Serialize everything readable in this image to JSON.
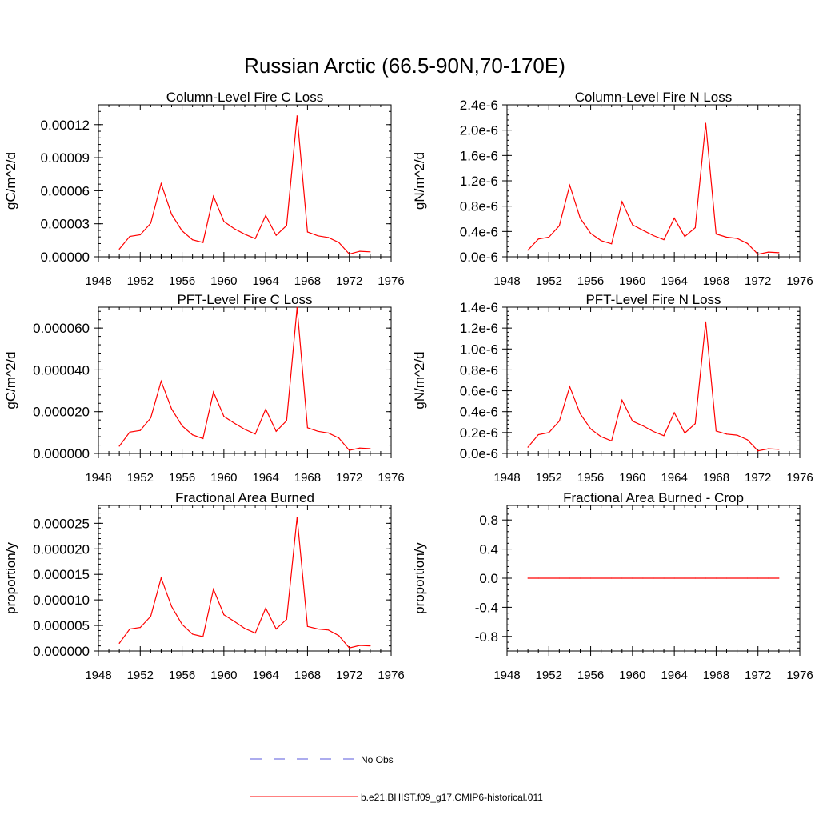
{
  "figure": {
    "title": "Russian Arctic (66.5-90N,70-170E)"
  },
  "legend": {
    "entries": [
      {
        "label": "No Obs",
        "color": "#5a5adc",
        "dash": true
      },
      {
        "label": "b.e21.BHIST.f09_g17.CMIP6-historical.011",
        "color": "#ff0000",
        "dash": false
      }
    ]
  },
  "colors": {
    "model": "#ff0000",
    "obs": "#5a5adc",
    "axis": "#000000"
  },
  "chart_data": [
    {
      "type": "line",
      "title": "Column-Level Fire C Loss",
      "ylabel": "gC/m^2/d",
      "xlim": [
        1948,
        1976
      ],
      "xticks": [
        "1948",
        "1952",
        "1956",
        "1960",
        "1964",
        "1968",
        "1972",
        "1976"
      ],
      "ylim": [
        0,
        0.000138
      ],
      "yticks": [
        0,
        3e-05,
        6e-05,
        9e-05,
        0.00012
      ],
      "ytick_labels": [
        "0.00000",
        "0.00003",
        "0.00006",
        "0.00009",
        "0.00012"
      ],
      "x": [
        1950,
        1951,
        1952,
        1953,
        1954,
        1955,
        1956,
        1957,
        1958,
        1959,
        1960,
        1961,
        1962,
        1963,
        1964,
        1965,
        1966,
        1967,
        1968,
        1969,
        1970,
        1971,
        1972,
        1973,
        1974
      ],
      "series": [
        {
          "name": "b.e21.BHIST.f09_g17.CMIP6-historical.011",
          "values": [
            7e-06,
            1.85e-05,
            2e-05,
            3.05e-05,
            6.65e-05,
            3.85e-05,
            2.35e-05,
            1.55e-05,
            1.3e-05,
            5.5e-05,
            3.2e-05,
            2.55e-05,
            2.05e-05,
            1.65e-05,
            3.75e-05,
            1.95e-05,
            2.85e-05,
            0.000128,
            2.25e-05,
            1.9e-05,
            1.75e-05,
            1.3e-05,
            2.5e-06,
            5e-06,
            4.5e-06
          ]
        }
      ]
    },
    {
      "type": "line",
      "title": "Column-Level Fire N Loss",
      "ylabel": "gN/m^2/d",
      "xlim": [
        1948,
        1976
      ],
      "xticks": [
        "1948",
        "1952",
        "1956",
        "1960",
        "1964",
        "1968",
        "1972",
        "1976"
      ],
      "ylim": [
        0,
        2.4e-06
      ],
      "yticks": [
        0,
        4e-07,
        8e-07,
        1.2e-06,
        1.6e-06,
        2e-06,
        2.4e-06
      ],
      "ytick_labels": [
        "0.0e-6",
        "0.4e-6",
        "0.8e-6",
        "1.2e-6",
        "1.6e-6",
        "2.0e-6",
        "2.4e-6"
      ],
      "x": [
        1950,
        1951,
        1952,
        1953,
        1954,
        1955,
        1956,
        1957,
        1958,
        1959,
        1960,
        1961,
        1962,
        1963,
        1964,
        1965,
        1966,
        1967,
        1968,
        1969,
        1970,
        1971,
        1972,
        1973,
        1974
      ],
      "series": [
        {
          "name": "b.e21.BHIST.f09_g17.CMIP6-historical.011",
          "values": [
            1.05e-07,
            2.8e-07,
            3.1e-07,
            4.9e-07,
            1.13e-06,
            6.1e-07,
            3.7e-07,
            2.55e-07,
            2.05e-07,
            8.7e-07,
            5.05e-07,
            4.2e-07,
            3.35e-07,
            2.7e-07,
            6.1e-07,
            3.2e-07,
            4.6e-07,
            2.11e-06,
            3.6e-07,
            3.1e-07,
            2.9e-07,
            2.1e-07,
            4e-08,
            7.5e-08,
            6.5e-08
          ]
        }
      ]
    },
    {
      "type": "line",
      "title": "PFT-Level Fire C Loss",
      "ylabel": "gC/m^2/d",
      "xlim": [
        1948,
        1976
      ],
      "xticks": [
        "1948",
        "1952",
        "1956",
        "1960",
        "1964",
        "1968",
        "1972",
        "1976"
      ],
      "ylim": [
        0,
        7e-05
      ],
      "yticks": [
        0,
        2e-05,
        4e-05,
        6e-05
      ],
      "ytick_labels": [
        "0.000000",
        "0.000020",
        "0.000040",
        "0.000060"
      ],
      "x": [
        1950,
        1951,
        1952,
        1953,
        1954,
        1955,
        1956,
        1957,
        1958,
        1959,
        1960,
        1961,
        1962,
        1963,
        1964,
        1965,
        1966,
        1967,
        1968,
        1969,
        1970,
        1971,
        1972,
        1973,
        1974
      ],
      "series": [
        {
          "name": "b.e21.BHIST.f09_g17.CMIP6-historical.011",
          "values": [
            3.5e-06,
            1.02e-05,
            1.1e-05,
            1.7e-05,
            3.46e-05,
            2.13e-05,
            1.32e-05,
            8.9e-06,
            7.1e-06,
            2.94e-05,
            1.77e-05,
            1.45e-05,
            1.15e-05,
            9.3e-06,
            2.12e-05,
            1.06e-05,
            1.57e-05,
            6.99e-05,
            1.23e-05,
            1.06e-05,
            9.8e-06,
            7.4e-06,
            1.5e-06,
            2.6e-06,
            2.3e-06
          ]
        }
      ]
    },
    {
      "type": "line",
      "title": "PFT-Level Fire N Loss",
      "ylabel": "gN/m^2/d",
      "xlim": [
        1948,
        1976
      ],
      "xticks": [
        "1948",
        "1952",
        "1956",
        "1960",
        "1964",
        "1968",
        "1972",
        "1976"
      ],
      "ylim": [
        0,
        1.4e-06
      ],
      "yticks": [
        0,
        2e-07,
        4e-07,
        6e-07,
        8e-07,
        1e-06,
        1.2e-06,
        1.4e-06
      ],
      "ytick_labels": [
        "0.0e-6",
        "0.2e-6",
        "0.4e-6",
        "0.6e-6",
        "0.8e-6",
        "1.0e-6",
        "1.2e-6",
        "1.4e-6"
      ],
      "x": [
        1950,
        1951,
        1952,
        1953,
        1954,
        1955,
        1956,
        1957,
        1958,
        1959,
        1960,
        1961,
        1962,
        1963,
        1964,
        1965,
        1966,
        1967,
        1968,
        1969,
        1970,
        1971,
        1972,
        1973,
        1974
      ],
      "series": [
        {
          "name": "b.e21.BHIST.f09_g17.CMIP6-historical.011",
          "values": [
            6e-08,
            1.8e-07,
            2e-07,
            3.1e-07,
            6.4e-07,
            3.8e-07,
            2.35e-07,
            1.6e-07,
            1.2e-07,
            5.1e-07,
            3.1e-07,
            2.65e-07,
            2.1e-07,
            1.7e-07,
            3.9e-07,
            1.95e-07,
            2.85e-07,
            1.26e-06,
            2.15e-07,
            1.85e-07,
            1.75e-07,
            1.3e-07,
            2.5e-08,
            4.5e-08,
            4e-08
          ]
        }
      ]
    },
    {
      "type": "line",
      "title": "Fractional Area Burned",
      "ylabel": "proportion/y",
      "xlim": [
        1948,
        1976
      ],
      "xticks": [
        "1948",
        "1952",
        "1956",
        "1960",
        "1964",
        "1968",
        "1972",
        "1976"
      ],
      "ylim": [
        0,
        2.85e-05
      ],
      "yticks": [
        0,
        5e-06,
        1e-05,
        1.5e-05,
        2e-05,
        2.5e-05
      ],
      "ytick_labels": [
        "0.000000",
        "0.000005",
        "0.000010",
        "0.000015",
        "0.000020",
        "0.000025"
      ],
      "x": [
        1950,
        1951,
        1952,
        1953,
        1954,
        1955,
        1956,
        1957,
        1958,
        1959,
        1960,
        1961,
        1962,
        1963,
        1964,
        1965,
        1966,
        1967,
        1968,
        1969,
        1970,
        1971,
        1972,
        1973,
        1974
      ],
      "series": [
        {
          "name": "b.e21.BHIST.f09_g17.CMIP6-historical.011",
          "values": [
            1.5e-06,
            4.3e-06,
            4.6e-06,
            6.8e-06,
            1.43e-05,
            8.7e-06,
            5.2e-06,
            3.3e-06,
            2.8e-06,
            1.21e-05,
            7.1e-06,
            5.8e-06,
            4.4e-06,
            3.5e-06,
            8.4e-06,
            4.3e-06,
            6.2e-06,
            2.62e-05,
            4.8e-06,
            4.3e-06,
            4.1e-06,
            3e-06,
            6e-07,
            1.1e-06,
            1e-06
          ]
        }
      ]
    },
    {
      "type": "line",
      "title": "Fractional Area Burned - Crop",
      "ylabel": "proportion/y",
      "xlim": [
        1948,
        1976
      ],
      "xticks": [
        "1948",
        "1952",
        "1956",
        "1960",
        "1964",
        "1968",
        "1972",
        "1976"
      ],
      "ylim": [
        -1.0,
        1.0
      ],
      "yticks": [
        -0.8,
        -0.4,
        0.0,
        0.4,
        0.8
      ],
      "ytick_labels": [
        "-0.8",
        "-0.4",
        "0.0",
        "0.4",
        "0.8"
      ],
      "x": [
        1950,
        1951,
        1952,
        1953,
        1954,
        1955,
        1956,
        1957,
        1958,
        1959,
        1960,
        1961,
        1962,
        1963,
        1964,
        1965,
        1966,
        1967,
        1968,
        1969,
        1970,
        1971,
        1972,
        1973,
        1974
      ],
      "series": [
        {
          "name": "b.e21.BHIST.f09_g17.CMIP6-historical.011",
          "values": [
            0,
            0,
            0,
            0,
            0,
            0,
            0,
            0,
            0,
            0,
            0,
            0,
            0,
            0,
            0,
            0,
            0,
            0,
            0,
            0,
            0,
            0,
            0,
            0,
            0
          ]
        }
      ]
    }
  ]
}
